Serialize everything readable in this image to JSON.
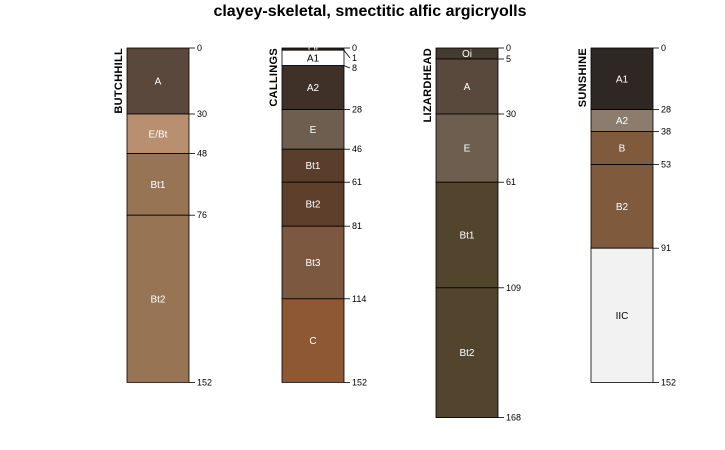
{
  "chart_data": {
    "type": "soil-profile-sketch",
    "title": "clayey-skeletal, smectitic alfic argicryolls",
    "depth_units": "cm",
    "ylim": [
      0,
      168
    ],
    "profiles": [
      {
        "name": "BUTCHHILL",
        "horizons": [
          {
            "name": "A",
            "top": 0,
            "bottom": 30,
            "color": "#59483b",
            "text_color": "#ffffff"
          },
          {
            "name": "E/Bt",
            "top": 30,
            "bottom": 48,
            "color": "#b8906f",
            "text_color": "#ffffff"
          },
          {
            "name": "Bt1",
            "top": 48,
            "bottom": 76,
            "color": "#977554",
            "text_color": "#ffffff"
          },
          {
            "name": "Bt2",
            "top": 76,
            "bottom": 152,
            "color": "#977554",
            "text_color": "#ffffff"
          }
        ],
        "depth_labels": [
          "0",
          "30",
          "48",
          "76",
          "152"
        ]
      },
      {
        "name": "CALLINGS",
        "horizons": [
          {
            "name": "Oi",
            "top": 0,
            "bottom": 1,
            "color": "#2d2620",
            "text_color": "#ffffff"
          },
          {
            "name": "A1",
            "top": 1,
            "bottom": 8,
            "color": "#ffffff",
            "text_color": "#000000"
          },
          {
            "name": "A2",
            "top": 8,
            "bottom": 28,
            "color": "#3f3128",
            "text_color": "#ffffff"
          },
          {
            "name": "E",
            "top": 28,
            "bottom": 46,
            "color": "#6e5e4f",
            "text_color": "#ffffff"
          },
          {
            "name": "Bt1",
            "top": 46,
            "bottom": 61,
            "color": "#5a3d2b",
            "text_color": "#ffffff"
          },
          {
            "name": "Bt2",
            "top": 61,
            "bottom": 81,
            "color": "#5e3f2c",
            "text_color": "#ffffff"
          },
          {
            "name": "Bt3",
            "top": 81,
            "bottom": 114,
            "color": "#7c5840",
            "text_color": "#ffffff"
          },
          {
            "name": "C",
            "top": 114,
            "bottom": 152,
            "color": "#8e5834",
            "text_color": "#ffffff"
          }
        ],
        "depth_labels": [
          "0",
          "1",
          "8",
          "28",
          "46",
          "61",
          "81",
          "114",
          "152"
        ]
      },
      {
        "name": "LIZARDHEAD",
        "horizons": [
          {
            "name": "Oi",
            "top": 0,
            "bottom": 5,
            "color": "#443a30",
            "text_color": "#ffffff"
          },
          {
            "name": "A",
            "top": 5,
            "bottom": 30,
            "color": "#58493c",
            "text_color": "#ffffff"
          },
          {
            "name": "E",
            "top": 30,
            "bottom": 61,
            "color": "#6e5e4f",
            "text_color": "#ffffff"
          },
          {
            "name": "Bt1",
            "top": 61,
            "bottom": 109,
            "color": "#52442d",
            "text_color": "#ffffff"
          },
          {
            "name": "Bt2",
            "top": 109,
            "bottom": 168,
            "color": "#52442d",
            "text_color": "#ffffff"
          }
        ],
        "depth_labels": [
          "0",
          "5",
          "30",
          "61",
          "109",
          "168"
        ]
      },
      {
        "name": "SUNSHINE",
        "horizons": [
          {
            "name": "A1",
            "top": 0,
            "bottom": 28,
            "color": "#2f2724",
            "text_color": "#ffffff"
          },
          {
            "name": "A2",
            "top": 28,
            "bottom": 38,
            "color": "#8b7c6d",
            "text_color": "#ffffff"
          },
          {
            "name": "B",
            "top": 38,
            "bottom": 53,
            "color": "#7f5a3d",
            "text_color": "#ffffff"
          },
          {
            "name": "B2",
            "top": 53,
            "bottom": 91,
            "color": "#7f5a3d",
            "text_color": "#ffffff"
          },
          {
            "name": "IIC",
            "top": 91,
            "bottom": 152,
            "color": "#f2f2f2",
            "text_color": "#000000"
          }
        ],
        "depth_labels": [
          "0",
          "28",
          "38",
          "53",
          "91",
          "152"
        ]
      }
    ]
  }
}
